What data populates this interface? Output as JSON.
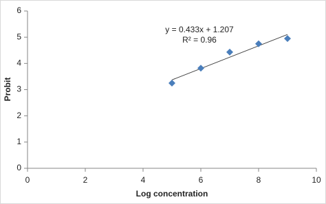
{
  "chart_data": {
    "type": "scatter",
    "xlabel": "Log concentration",
    "ylabel": "Probit",
    "x": [
      5,
      6,
      7,
      8,
      9
    ],
    "series": [
      {
        "color": "#4a7ebb",
        "values": [
          3.25,
          3.82,
          4.43,
          4.75,
          4.95
        ]
      }
    ],
    "trendline": {
      "equation": "y = 0.433x + 1.207",
      "r_squared": "R² = 0.96",
      "color": "#404040",
      "x": [
        5,
        9
      ],
      "values": [
        3.372,
        5.104
      ]
    },
    "xlim": [
      0,
      10
    ],
    "xticks": [
      0,
      2,
      4,
      6,
      8,
      10
    ],
    "ylim": [
      0,
      6
    ],
    "yticks": [
      0,
      1,
      2,
      3,
      4,
      5,
      6
    ],
    "grid": false
  }
}
